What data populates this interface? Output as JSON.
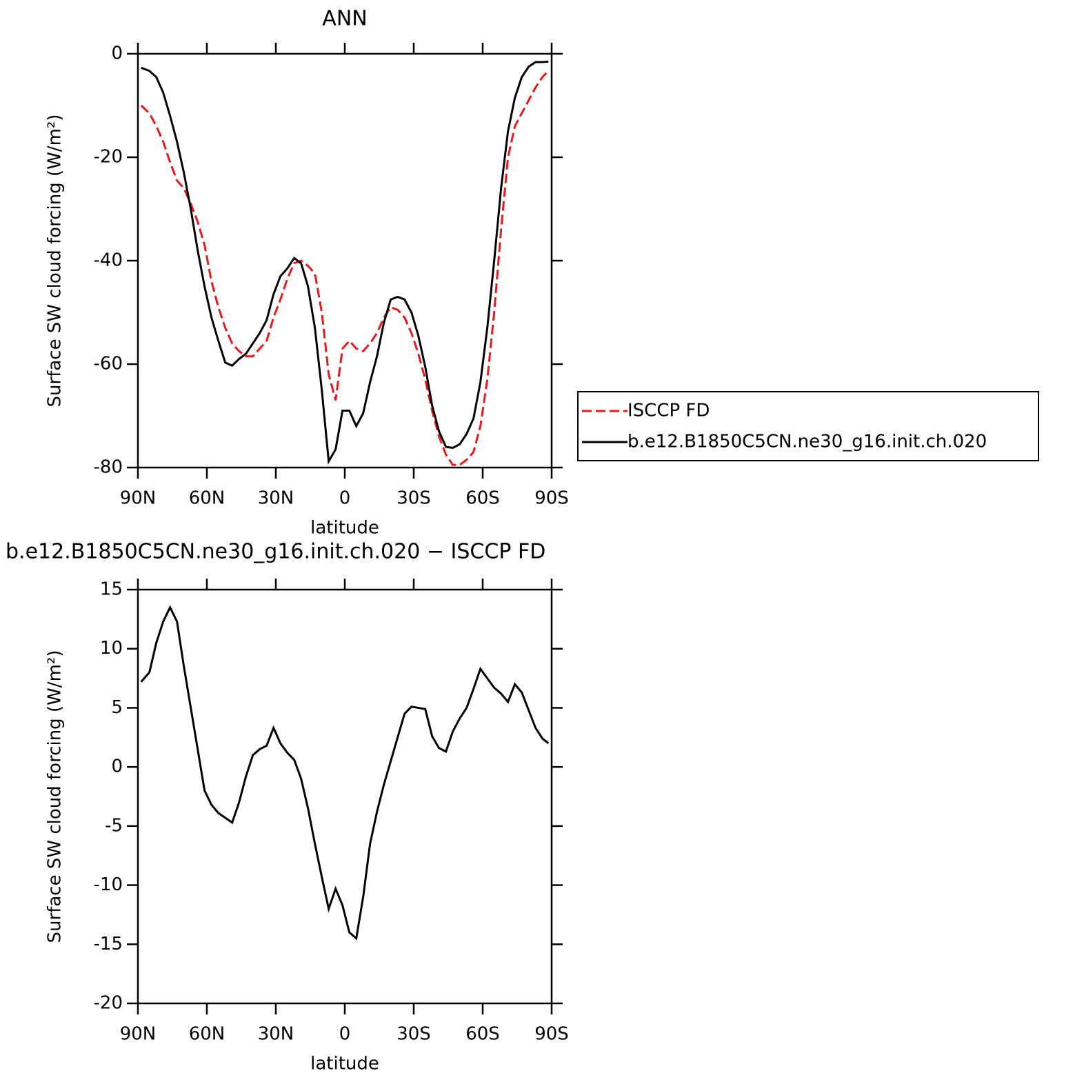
{
  "chart_data": [
    {
      "type": "line",
      "title": "ANN",
      "xlabel": "latitude",
      "ylabel": "Surface SW cloud forcing (W/m²)",
      "x": [
        88.6,
        85,
        82,
        79,
        76,
        73,
        70,
        67,
        64,
        61,
        58,
        55,
        52,
        49,
        46,
        43,
        40,
        37,
        34,
        31,
        28,
        25,
        22,
        19,
        16,
        13,
        10,
        7,
        4,
        1,
        -2,
        -5,
        -8,
        -11,
        -14,
        -17,
        -20,
        -23,
        -26,
        -29,
        -32,
        -35,
        -38,
        -41,
        -44,
        -47,
        -50,
        -53,
        -56,
        -59,
        -62,
        -65,
        -68,
        -71,
        -74,
        -77,
        -80,
        -83,
        -86,
        -88.6
      ],
      "series": [
        {
          "name": "ISCCP FD",
          "color": "#e41a1c",
          "dash": "dashed",
          "values": [
            -10,
            -11.5,
            -14,
            -17,
            -21,
            -24.5,
            -26,
            -29,
            -32.5,
            -37,
            -44,
            -49,
            -53,
            -56,
            -57.5,
            -58.5,
            -58.5,
            -57,
            -55.5,
            -51,
            -47.5,
            -43.5,
            -40.5,
            -40,
            -41,
            -42.5,
            -50,
            -62,
            -67,
            -57,
            -55.5,
            -57,
            -57.5,
            -56,
            -54,
            -51,
            -49,
            -49.5,
            -51,
            -54,
            -58,
            -63,
            -69,
            -74,
            -77.5,
            -79.5,
            -79.5,
            -78.5,
            -77,
            -72,
            -63,
            -50,
            -34,
            -20,
            -14,
            -11.5,
            -9,
            -6.5,
            -4.5,
            -3.3
          ]
        },
        {
          "name": "b.e12.B1850C5CN.ne30_g16.init.ch.020",
          "color": "#000000",
          "dash": "solid",
          "values": [
            -2.7,
            -3.3,
            -4.5,
            -7.5,
            -12,
            -17,
            -23,
            -30,
            -38,
            -45,
            -51,
            -55.5,
            -59.7,
            -60.3,
            -59,
            -58,
            -56,
            -54,
            -51.5,
            -46.5,
            -43,
            -41.5,
            -39.5,
            -40.5,
            -45,
            -53,
            -65,
            -78.8,
            -76.5,
            -69,
            -69,
            -72,
            -69.5,
            -63.5,
            -58.5,
            -52,
            -47.5,
            -47,
            -47.5,
            -50,
            -54.5,
            -60.5,
            -68,
            -73,
            -76,
            -76.2,
            -75.5,
            -73.5,
            -70.5,
            -63.5,
            -53,
            -40,
            -26,
            -15,
            -8.5,
            -4.5,
            -2.5,
            -1.6,
            -1.6,
            -1.5
          ]
        }
      ],
      "xlim": [
        90,
        -90
      ],
      "xticks": [
        {
          "value": 90,
          "label": "90N"
        },
        {
          "value": 60,
          "label": "60N"
        },
        {
          "value": 30,
          "label": "30N"
        },
        0,
        {
          "value": -30,
          "label": "30S"
        },
        {
          "value": -60,
          "label": "60S"
        },
        {
          "value": -90,
          "label": "90S"
        }
      ],
      "ylim": [
        -80,
        0
      ],
      "yticks": [
        0,
        -20,
        -40,
        -60,
        -80
      ],
      "legend": "right"
    },
    {
      "type": "line",
      "title": "b.e12.B1850C5CN.ne30_g16.init.ch.020 − ISCCP FD",
      "xlabel": "latitude",
      "ylabel": "Surface SW cloud forcing (W/m²)",
      "x": [
        88.6,
        85,
        82,
        79,
        76,
        73,
        70,
        67,
        64,
        61,
        58,
        55,
        52,
        49,
        46,
        43,
        40,
        37,
        34,
        31,
        28,
        25,
        22,
        19,
        16,
        13,
        10,
        7,
        4,
        1,
        -2,
        -5,
        -8,
        -11,
        -14,
        -17,
        -20,
        -23,
        -26,
        -29,
        -32,
        -35,
        -38,
        -41,
        -44,
        -47,
        -50,
        -53,
        -56,
        -59,
        -62,
        -65,
        -68,
        -71,
        -74,
        -77,
        -80,
        -83,
        -86,
        -88.6
      ],
      "series": [
        {
          "color": "#000000",
          "dash": "solid",
          "values": [
            7.2,
            8,
            10.5,
            12.3,
            13.5,
            12.3,
            8.5,
            5,
            1.5,
            -2,
            -3.2,
            -3.9,
            -4.3,
            -4.7,
            -3,
            -0.8,
            1,
            1.5,
            1.8,
            3.3,
            2,
            1.2,
            0.6,
            -1,
            -3.5,
            -6.5,
            -9.3,
            -12,
            -10.3,
            -11.7,
            -14,
            -14.5,
            -11,
            -6.5,
            -3.8,
            -1.5,
            0.5,
            2.5,
            4.5,
            5.1,
            5,
            4.9,
            2.6,
            1.6,
            1.3,
            3,
            4.1,
            5,
            6.6,
            8.3,
            7.5,
            6.7,
            6.2,
            5.5,
            7,
            6.3,
            4.8,
            3.3,
            2.4,
            2
          ]
        }
      ],
      "xlim": [
        90,
        -90
      ],
      "xticks": [
        {
          "value": 90,
          "label": "90N"
        },
        {
          "value": 60,
          "label": "60N"
        },
        {
          "value": 30,
          "label": "30N"
        },
        0,
        {
          "value": -30,
          "label": "30S"
        },
        {
          "value": -60,
          "label": "60S"
        },
        {
          "value": -90,
          "label": "90S"
        }
      ],
      "ylim": [
        -20,
        15
      ],
      "yticks": [
        15,
        10,
        5,
        0,
        -5,
        -10,
        -15,
        -20
      ]
    }
  ]
}
